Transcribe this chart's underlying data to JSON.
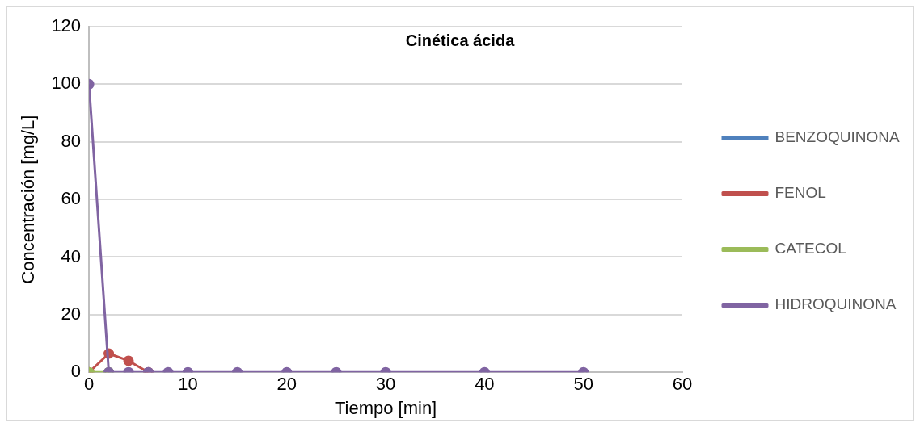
{
  "chart_data": {
    "type": "line",
    "title": "Cinética ácida",
    "xlabel": "Tiempo [min]",
    "ylabel": "Concentración [mg/L]",
    "x": [
      0,
      2,
      4,
      6,
      8,
      10,
      15,
      20,
      25,
      30,
      40,
      50
    ],
    "series": [
      {
        "name": "BENZOQUINONA",
        "color": "#4f81bd",
        "values": [
          null,
          null,
          null,
          null,
          null,
          null,
          null,
          null,
          null,
          null,
          null,
          null
        ]
      },
      {
        "name": "FENOL",
        "color": "#c0504d",
        "values": [
          0,
          6.5,
          4,
          0,
          null,
          null,
          null,
          null,
          null,
          null,
          null,
          null
        ]
      },
      {
        "name": "CATECOL",
        "color": "#9bbb59",
        "values": [
          0,
          0,
          null,
          null,
          null,
          null,
          null,
          null,
          null,
          null,
          null,
          null
        ]
      },
      {
        "name": "HIDROQUINONA",
        "color": "#8064a2",
        "values": [
          100,
          0,
          0,
          0,
          0,
          0,
          0,
          0,
          0,
          0,
          0,
          0
        ]
      }
    ],
    "xlim": [
      0,
      60
    ],
    "xticks": [
      0,
      10,
      20,
      30,
      40,
      50,
      60
    ],
    "ylim": [
      0,
      120
    ],
    "yticks": [
      0,
      20,
      40,
      60,
      80,
      100,
      120
    ],
    "grid": "y",
    "legend": "right",
    "marker": "circle",
    "line_style": "solid"
  }
}
